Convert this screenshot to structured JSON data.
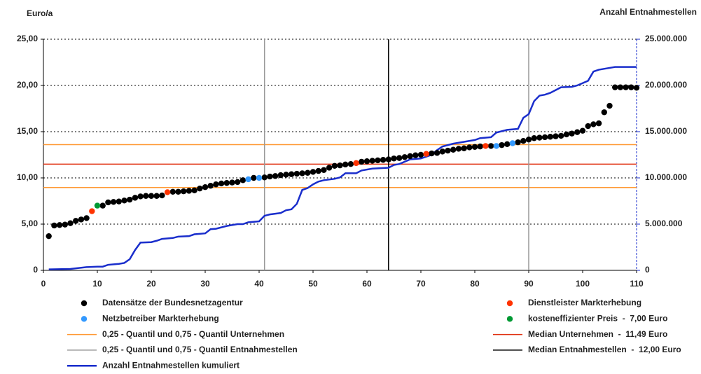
{
  "chart_data": {
    "type": "combo",
    "ylabel": "Euro/a",
    "y2label": "Anzahl Entnahmestellen",
    "xlim": [
      0,
      110
    ],
    "xticks": [
      0,
      10,
      20,
      30,
      40,
      50,
      60,
      70,
      80,
      90,
      100,
      110
    ],
    "ylim": [
      0,
      25
    ],
    "yticks": [
      0,
      {
        "value": 5,
        "label": "5,00"
      },
      {
        "value": 10,
        "label": "10,00"
      },
      {
        "value": 15,
        "label": "15,00"
      },
      {
        "value": 20,
        "label": "20,00"
      },
      {
        "value": 25,
        "label": "25,00"
      }
    ],
    "y2lim": [
      0,
      25000000
    ],
    "y2ticks": [
      0,
      {
        "value": 5000000,
        "label": "5.000.000"
      },
      {
        "value": 10000000,
        "label": "10.000.000"
      },
      {
        "value": 15000000,
        "label": "15.000.000"
      },
      {
        "value": 20000000,
        "label": "20.000.000"
      },
      {
        "value": 25000000,
        "label": "25.000.000"
      }
    ],
    "grid": true,
    "series": [
      {
        "name": "Datensätze der Bundesnetzagentur",
        "kind": "scatter",
        "color": "#000000",
        "x": [
          1,
          2,
          3,
          4,
          5,
          6,
          7,
          8,
          11,
          12,
          13,
          14,
          15,
          16,
          17,
          18,
          19,
          20,
          21,
          22,
          24,
          25,
          26,
          27,
          28,
          29,
          30,
          31,
          32,
          33,
          34,
          35,
          36,
          37,
          39,
          41,
          42,
          43,
          44,
          45,
          46,
          47,
          48,
          49,
          50,
          51,
          52,
          53,
          54,
          55,
          56,
          57,
          59,
          60,
          61,
          62,
          63,
          64,
          65,
          66,
          67,
          68,
          69,
          70,
          72,
          73,
          74,
          75,
          76,
          77,
          78,
          79,
          80,
          81,
          83,
          85,
          86,
          88,
          89,
          90,
          91,
          92,
          93,
          94,
          95,
          96,
          97,
          98,
          99,
          100,
          101,
          102,
          103,
          104,
          105,
          106,
          107,
          108,
          109,
          110
        ],
        "values": [
          3.7,
          4.85,
          4.9,
          4.95,
          5.1,
          5.35,
          5.5,
          5.65,
          7.0,
          7.35,
          7.4,
          7.45,
          7.55,
          7.65,
          7.85,
          8.0,
          8.05,
          8.05,
          8.05,
          8.1,
          8.5,
          8.5,
          8.55,
          8.6,
          8.65,
          8.85,
          9.0,
          9.15,
          9.3,
          9.4,
          9.45,
          9.5,
          9.55,
          9.75,
          10.0,
          10.05,
          10.15,
          10.2,
          10.3,
          10.35,
          10.4,
          10.45,
          10.5,
          10.55,
          10.65,
          10.75,
          10.85,
          11.1,
          11.3,
          11.35,
          11.45,
          11.5,
          11.75,
          11.8,
          11.85,
          11.9,
          11.95,
          12.0,
          12.1,
          12.15,
          12.25,
          12.35,
          12.45,
          12.5,
          12.65,
          12.7,
          12.85,
          12.95,
          13.05,
          13.15,
          13.2,
          13.3,
          13.35,
          13.4,
          13.45,
          13.55,
          13.65,
          13.85,
          14.0,
          14.15,
          14.3,
          14.35,
          14.4,
          14.45,
          14.5,
          14.55,
          14.7,
          14.8,
          14.95,
          15.1,
          15.6,
          15.8,
          15.9,
          17.1,
          17.8,
          19.8,
          19.8,
          19.8,
          19.8,
          19.75
        ]
      },
      {
        "name": "Dienstleister Markterhebung",
        "kind": "scatter",
        "color": "#ff3300",
        "x": [
          9,
          23,
          58,
          71,
          82
        ],
        "values": [
          6.4,
          8.45,
          11.6,
          12.6,
          13.45
        ]
      },
      {
        "name": "Netzbetreiber Markterhebung",
        "kind": "scatter",
        "color": "#3399ff",
        "x": [
          38,
          40,
          84,
          87
        ],
        "values": [
          9.85,
          10.0,
          13.45,
          13.75
        ]
      },
      {
        "name": "kosteneffizienter Preis  -  7,00 Euro",
        "kind": "scatter",
        "color": "#009933",
        "x": [
          10
        ],
        "values": [
          7.0
        ]
      },
      {
        "name": "0,25 - Quantil und 0,75 - Quantil Unternehmen",
        "kind": "hline",
        "color": "#ff9933",
        "values": [
          8.96,
          13.6
        ]
      },
      {
        "name": "Median Unternehmen  -  11,49 Euro",
        "kind": "hline",
        "color": "#e03010",
        "values": [
          11.49
        ]
      },
      {
        "name": "0,25 - Quantil und 0,75 - Quantil Entnahmestellen",
        "kind": "vline",
        "color": "#999999",
        "x": [
          41,
          90
        ]
      },
      {
        "name": "Median Entnahmestellen  -  12,00 Euro",
        "kind": "vline",
        "color": "#000000",
        "x": [
          64
        ]
      },
      {
        "name": "Anzahl Entnahmestellen kumuliert",
        "kind": "line",
        "axis": "y2",
        "color": "#1a2ecc",
        "x": [
          1,
          5,
          8,
          10,
          11,
          12,
          14,
          15,
          16,
          17,
          18,
          20,
          21,
          22,
          24,
          25,
          27,
          28,
          30,
          31,
          32,
          34,
          36,
          37,
          38,
          40,
          41,
          42,
          44,
          45,
          46,
          47,
          48,
          49,
          50,
          51,
          52,
          54,
          55,
          56,
          58,
          59,
          61,
          64,
          65,
          66,
          68,
          70,
          72,
          73,
          74,
          76,
          78,
          80,
          81,
          83,
          84,
          86,
          88,
          89,
          90,
          91,
          92,
          93,
          94,
          95,
          96,
          98,
          99,
          101,
          102,
          103,
          105,
          106,
          110
        ],
        "values": [
          100000,
          150000,
          350000,
          400000,
          400000,
          600000,
          700000,
          800000,
          1200000,
          2200000,
          3000000,
          3050000,
          3200000,
          3400000,
          3500000,
          3650000,
          3700000,
          3900000,
          4000000,
          4450000,
          4500000,
          4800000,
          5000000,
          5000000,
          5200000,
          5300000,
          5900000,
          6050000,
          6200000,
          6500000,
          6600000,
          7200000,
          8700000,
          8900000,
          9300000,
          9600000,
          9750000,
          9900000,
          10050000,
          10500000,
          10500000,
          10800000,
          11000000,
          11100000,
          11400000,
          11500000,
          12000000,
          12100000,
          12500000,
          13000000,
          13400000,
          13700000,
          13900000,
          14100000,
          14300000,
          14400000,
          14900000,
          15200000,
          15300000,
          16500000,
          16900000,
          18300000,
          18900000,
          19000000,
          19200000,
          19500000,
          19800000,
          19850000,
          20000000,
          20500000,
          21500000,
          21700000,
          21900000,
          22000000,
          22000000
        ]
      }
    ]
  }
}
